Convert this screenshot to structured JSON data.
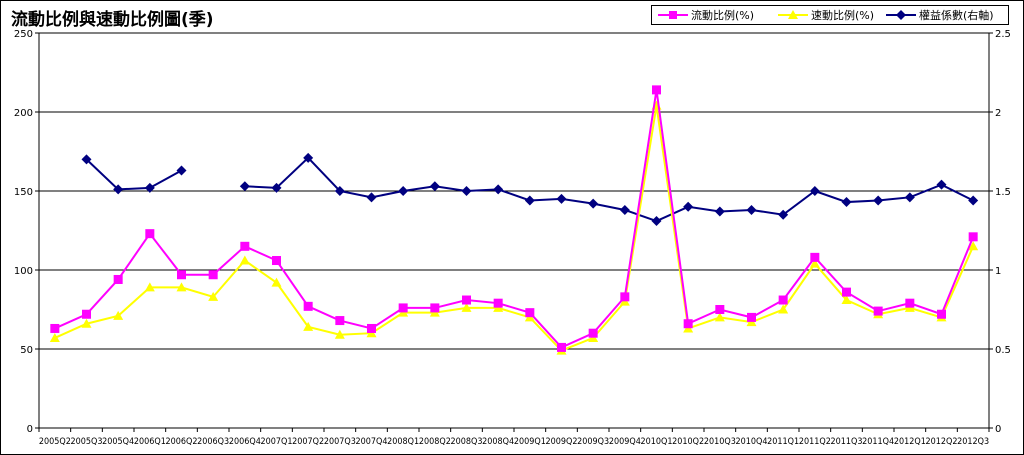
{
  "chart_data": {
    "type": "line",
    "title": "流動比例與速動比例圖(季)",
    "categories": [
      "2005Q2",
      "2005Q3",
      "2005Q4",
      "2006Q1",
      "2006Q2",
      "2006Q3",
      "2006Q4",
      "2007Q1",
      "2007Q2",
      "2007Q3",
      "2007Q4",
      "2008Q1",
      "2008Q2",
      "2008Q3",
      "2008Q4",
      "2009Q1",
      "2009Q2",
      "2009Q3",
      "2009Q4",
      "2010Q1",
      "2010Q2",
      "2010Q3",
      "2010Q4",
      "2011Q1",
      "2011Q2",
      "2011Q3",
      "2011Q4",
      "2012Q1",
      "2012Q2",
      "2012Q3"
    ],
    "y_left": {
      "min": 0,
      "max": 250,
      "ticks": [
        0,
        50,
        100,
        150,
        200,
        250
      ]
    },
    "y_right": {
      "min": 0,
      "max": 2.5,
      "ticks": [
        0,
        0.5,
        1,
        1.5,
        2,
        2.5
      ]
    },
    "grid": true,
    "legend_position": "top-right",
    "series": [
      {
        "name": "流動比例(%)",
        "axis": "left",
        "color": "#ff00ff",
        "marker": "square",
        "values": [
          63,
          72,
          94,
          123,
          97,
          97,
          115,
          106,
          77,
          68,
          63,
          76,
          76,
          81,
          79,
          73,
          51,
          60,
          83,
          214,
          66,
          75,
          70,
          81,
          108,
          86,
          74,
          79,
          72,
          121
        ]
      },
      {
        "name": "速動比例(%)",
        "axis": "left",
        "color": "#ffff00",
        "marker": "triangle",
        "values": [
          57,
          66,
          71,
          89,
          89,
          83,
          106,
          92,
          64,
          59,
          60,
          73,
          73,
          76,
          76,
          70,
          49,
          57,
          80,
          204,
          63,
          70,
          67,
          75,
          104,
          81,
          72,
          76,
          70,
          115
        ]
      },
      {
        "name": "權益係數(右軸)",
        "axis": "right",
        "color": "#000080",
        "marker": "diamond",
        "values": [
          null,
          1.7,
          1.51,
          1.52,
          1.63,
          null,
          1.53,
          1.52,
          1.71,
          1.5,
          1.46,
          1.5,
          1.53,
          1.5,
          1.51,
          1.44,
          1.45,
          1.42,
          1.38,
          1.31,
          1.4,
          1.37,
          1.38,
          1.35,
          1.5,
          1.43,
          1.44,
          1.46,
          1.54,
          1.44
        ]
      }
    ]
  }
}
